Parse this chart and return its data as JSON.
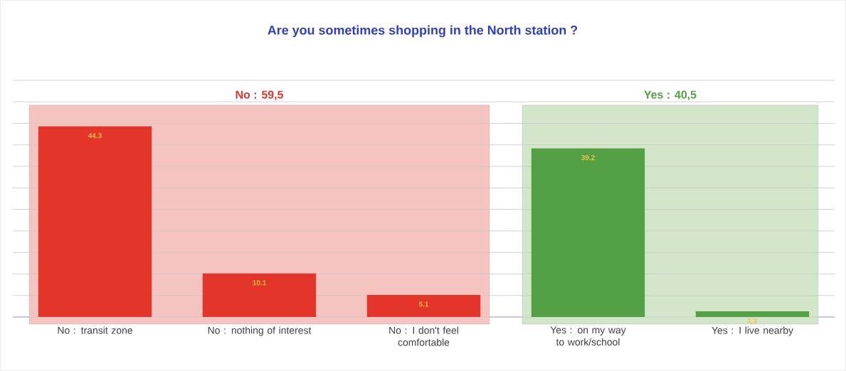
{
  "chart_data": {
    "type": "bar",
    "title": "Are you sometimes shopping in the North station ?",
    "categories": [
      "No : transit zone",
      "No : nothing of interest",
      "No : I don't feel comfortable",
      "Yes : on my way to work/school",
      "Yes : I live nearby"
    ],
    "values": [
      44.3,
      10.1,
      5.1,
      39.2,
      1.3
    ],
    "colors": [
      "#e3352a",
      "#e3352a",
      "#e3352a",
      "#53a045",
      "#53a045"
    ],
    "data_labels": true,
    "ylim": [
      0,
      55
    ],
    "yticks": [
      {
        "value": 0,
        "label": null
      },
      {
        "value": 5,
        "label": null
      },
      {
        "value": 10,
        "label": null
      },
      {
        "value": 15,
        "label": null
      },
      {
        "value": 20,
        "label": null
      },
      {
        "value": 25,
        "label": null
      },
      {
        "value": 30,
        "label": null
      },
      {
        "value": 35,
        "label": null
      },
      {
        "value": 40,
        "label": null
      },
      {
        "value": 45,
        "label": null
      },
      {
        "value": 50,
        "label": null
      },
      {
        "value": 55,
        "label": null
      }
    ],
    "grid": "y",
    "tick_labels": "x",
    "bands": [
      {
        "axis": "x",
        "from": "No : transit zone",
        "to": "No : I don't feel comfortable",
        "label": "No : 59,5",
        "color": "#f5c4c1"
      },
      {
        "axis": "x",
        "from": "Yes : on my way to work/school",
        "to": "Yes : I live nearby",
        "label": "Yes : 40,5",
        "color": "#d3e6c9"
      }
    ]
  }
}
